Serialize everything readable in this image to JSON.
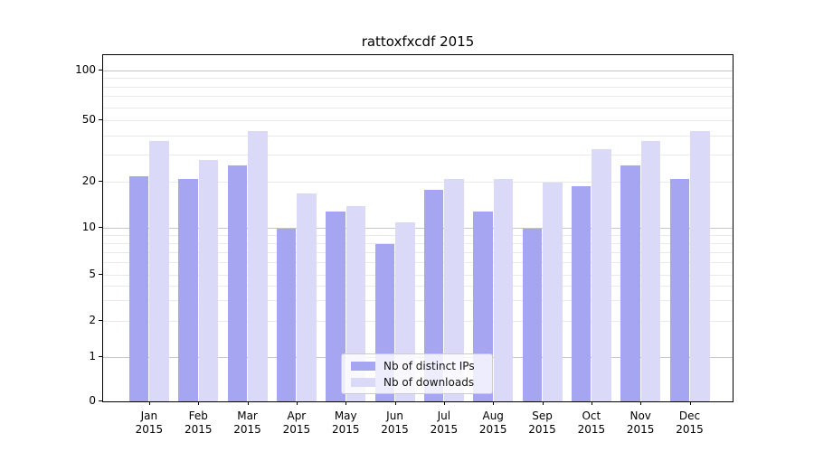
{
  "chart_data": {
    "type": "bar",
    "title": "rattoxfxcdf 2015",
    "categories": [
      "Jan",
      "Feb",
      "Mar",
      "Apr",
      "May",
      "Jun",
      "Jul",
      "Aug",
      "Sep",
      "Oct",
      "Nov",
      "Dec"
    ],
    "category_year": "2015",
    "series": [
      {
        "name": "Nb of distinct IPs",
        "color": "#a5a5f2",
        "values": [
          22,
          21,
          26,
          10,
          13,
          8,
          18,
          13,
          10,
          19,
          26,
          21
        ]
      },
      {
        "name": "Nb of downloads",
        "color": "#dadaf8",
        "values": [
          37,
          28,
          43,
          17,
          14,
          11,
          21,
          21,
          20,
          33,
          37,
          43
        ]
      }
    ],
    "y_axis": {
      "ticks": [
        0,
        1,
        2,
        5,
        10,
        20,
        50,
        100
      ],
      "scale": "log-like with 0 baseline",
      "ylim": [
        0,
        128
      ]
    },
    "x_axis": {
      "label_lines": 2
    },
    "grid": {
      "on": true,
      "minor_ticks": [
        3,
        4,
        6,
        7,
        8,
        9,
        30,
        40,
        60,
        70,
        80,
        90
      ],
      "decade_color": "#c6c6c6",
      "minor_color": "#e9e9e9"
    },
    "legend": {
      "position": "bottom-center"
    }
  }
}
